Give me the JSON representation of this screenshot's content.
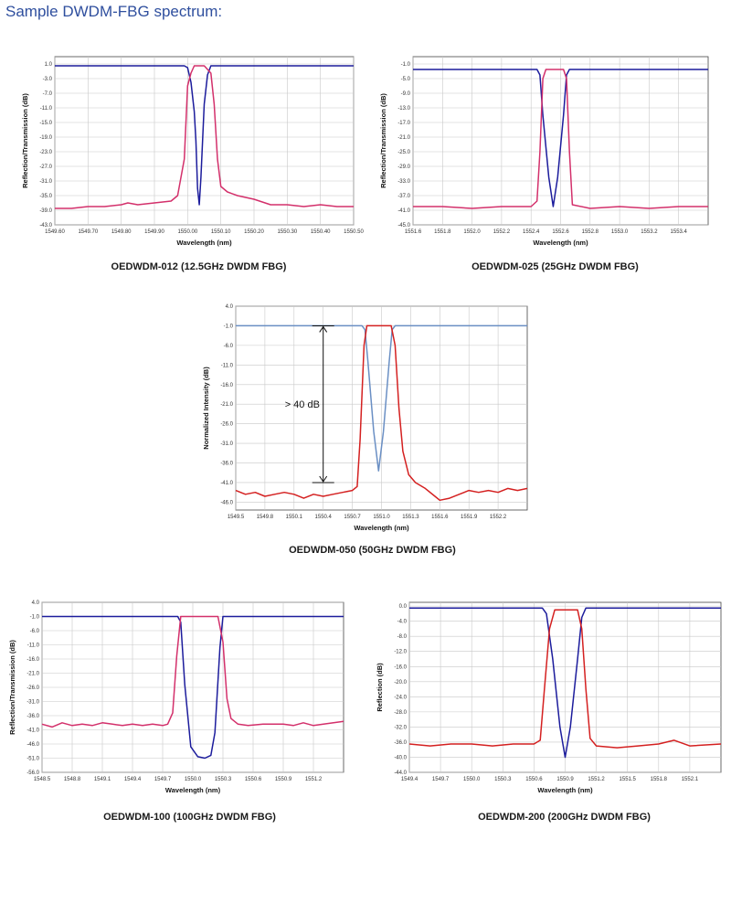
{
  "page": {
    "title": "Sample DWDM-FBG spectrum:"
  },
  "chart_data": [
    {
      "id": "c1",
      "type": "line",
      "caption": "OEDWDM-012 (12.5GHz DWDM FBG)",
      "xlabel": "Wavelength (nm)",
      "ylabel": "Reflection/Transmission (dB)",
      "xlim": [
        1549.6,
        1550.5
      ],
      "ylim": [
        -43.0,
        3.0
      ],
      "xticks": [
        "1549.60",
        "1549.70",
        "1549.80",
        "1549.90",
        "1550.00",
        "1550.10",
        "1550.20",
        "1550.30",
        "1550.40",
        "1550.50"
      ],
      "yticks": [
        "1.0",
        "-3.0",
        "-7.0",
        "-11.0",
        "-15.0",
        "-19.0",
        "-23.0",
        "-27.0",
        "-31.0",
        "-35.0",
        "-39.0",
        "-43.0"
      ],
      "grid": true,
      "series": [
        {
          "color": "#1c1c9c",
          "x": [
            1549.6,
            1549.99,
            1550.0,
            1550.01,
            1550.02,
            1550.025,
            1550.03,
            1550.035,
            1550.04,
            1550.05,
            1550.06,
            1550.07,
            1550.5
          ],
          "y": [
            0.5,
            0.5,
            0.0,
            -4.0,
            -12.0,
            -20.0,
            -33.0,
            -37.5,
            -30.0,
            -10.0,
            -2.0,
            0.5,
            0.5
          ]
        },
        {
          "color": "#d3306b",
          "x": [
            1549.6,
            1549.65,
            1549.7,
            1549.75,
            1549.8,
            1549.82,
            1549.85,
            1549.9,
            1549.95,
            1549.97,
            1549.99,
            1550.0,
            1550.01,
            1550.02,
            1550.05,
            1550.07,
            1550.08,
            1550.09,
            1550.1,
            1550.12,
            1550.15,
            1550.2,
            1550.25,
            1550.3,
            1550.35,
            1550.4,
            1550.45,
            1550.5
          ],
          "y": [
            -38.5,
            -38.5,
            -38.0,
            -38.0,
            -37.5,
            -37.0,
            -37.5,
            -37.0,
            -36.5,
            -35.0,
            -25.0,
            -5.0,
            -1.5,
            0.5,
            0.5,
            -1.5,
            -10.0,
            -25.0,
            -32.5,
            -34.0,
            -35.0,
            -36.0,
            -37.5,
            -37.5,
            -38.0,
            -37.5,
            -38.0,
            -38.0
          ]
        }
      ]
    },
    {
      "id": "c2",
      "type": "line",
      "caption": "OEDWDM-025 (25GHz DWDM FBG)",
      "xlabel": "Wavelength (nm)",
      "ylabel": "Reflection/Transmission (dB)",
      "xlim": [
        1551.6,
        1553.6
      ],
      "ylim": [
        -45.0,
        1.0
      ],
      "xticks": [
        "1551.6",
        "1551.8",
        "1552.0",
        "1552.2",
        "1552.4",
        "1552.6",
        "1552.8",
        "1553.0",
        "1553.2",
        "1553.4"
      ],
      "yticks": [
        "-1.0",
        "-5.0",
        "-9.0",
        "-13.0",
        "-17.0",
        "-21.0",
        "-25.0",
        "-29.0",
        "-33.0",
        "-37.0",
        "-41.0",
        "-45.0"
      ],
      "grid": true,
      "series": [
        {
          "color": "#1c1c9c",
          "x": [
            1551.6,
            1552.44,
            1552.46,
            1552.48,
            1552.52,
            1552.55,
            1552.58,
            1552.62,
            1552.64,
            1552.66,
            1553.6
          ],
          "y": [
            -2.5,
            -2.5,
            -4.0,
            -15.0,
            -32.0,
            -40.0,
            -32.0,
            -15.0,
            -4.0,
            -2.5,
            -2.5
          ]
        },
        {
          "color": "#d3306b",
          "x": [
            1551.6,
            1551.8,
            1552.0,
            1552.2,
            1552.4,
            1552.44,
            1552.46,
            1552.48,
            1552.5,
            1552.62,
            1552.64,
            1552.66,
            1552.68,
            1552.8,
            1553.0,
            1553.2,
            1553.4,
            1553.6
          ],
          "y": [
            -40.0,
            -40.0,
            -40.5,
            -40.0,
            -40.0,
            -38.5,
            -25.0,
            -5.0,
            -2.5,
            -2.5,
            -5.0,
            -25.0,
            -39.5,
            -40.5,
            -40.0,
            -40.5,
            -40.0,
            -40.0
          ]
        }
      ]
    },
    {
      "id": "c3",
      "type": "line",
      "caption": "OEDWDM-050 (50GHz DWDM FBG)",
      "xlabel": "Wavelength (nm)",
      "ylabel": "Normalized Intensity (dB)",
      "xlim": [
        1549.5,
        1552.5
      ],
      "ylim": [
        -48.0,
        4.0
      ],
      "xticks": [
        "1549.5",
        "1549.8",
        "1550.1",
        "1550.4",
        "1550.7",
        "1551.0",
        "1551.3",
        "1551.6",
        "1551.9",
        "1552.2"
      ],
      "yticks": [
        "4.0",
        "-1.0",
        "-6.0",
        "-11.0",
        "-16.0",
        "-21.0",
        "-26.0",
        "-31.0",
        "-36.0",
        "-41.0",
        "-46.0"
      ],
      "grid": true,
      "annotation": "> 40 dB",
      "annotation_x": 1550.4,
      "annotation_y": [
        -1.0,
        -41.0
      ],
      "series": [
        {
          "color": "#6a8fc4",
          "x": [
            1549.5,
            1550.8,
            1550.83,
            1550.86,
            1550.92,
            1550.97,
            1551.02,
            1551.08,
            1551.11,
            1551.14,
            1552.5
          ],
          "y": [
            -1.0,
            -1.0,
            -2.0,
            -10.0,
            -28.0,
            -38.0,
            -28.0,
            -10.0,
            -2.0,
            -1.0,
            -1.0
          ]
        },
        {
          "color": "#d42020",
          "x": [
            1549.5,
            1549.6,
            1549.7,
            1549.8,
            1549.9,
            1550.0,
            1550.1,
            1550.2,
            1550.3,
            1550.4,
            1550.5,
            1550.6,
            1550.7,
            1550.75,
            1550.78,
            1550.82,
            1550.85,
            1551.1,
            1551.14,
            1551.18,
            1551.22,
            1551.28,
            1551.35,
            1551.45,
            1551.55,
            1551.6,
            1551.7,
            1551.8,
            1551.9,
            1552.0,
            1552.1,
            1552.2,
            1552.3,
            1552.4,
            1552.5
          ],
          "y": [
            -43.0,
            -44.0,
            -43.5,
            -44.5,
            -44.0,
            -43.5,
            -44.0,
            -45.0,
            -44.0,
            -44.5,
            -44.0,
            -43.5,
            -43.0,
            -42.0,
            -30.0,
            -6.0,
            -1.0,
            -1.0,
            -6.0,
            -22.0,
            -33.0,
            -39.0,
            -41.0,
            -42.5,
            -44.5,
            -45.5,
            -45.0,
            -44.0,
            -43.0,
            -43.5,
            -43.0,
            -43.5,
            -42.5,
            -43.0,
            -42.5
          ]
        }
      ]
    },
    {
      "id": "c4",
      "type": "line",
      "caption": "OEDWDM-100 (100GHz DWDM FBG)",
      "xlabel": "Wavelength (nm)",
      "ylabel": "Reflection/Transmission (dB)",
      "xlim": [
        1548.5,
        1551.5
      ],
      "ylim": [
        -56.0,
        4.0
      ],
      "xticks": [
        "1548.5",
        "1548.8",
        "1549.1",
        "1549.4",
        "1549.7",
        "1550.0",
        "1550.3",
        "1550.6",
        "1550.9",
        "1551.2"
      ],
      "yticks": [
        "4.0",
        "-1.0",
        "-6.0",
        "-11.0",
        "-16.0",
        "-21.0",
        "-26.0",
        "-31.0",
        "-36.0",
        "-41.0",
        "-46.0",
        "-51.0",
        "-56.0"
      ],
      "grid": true,
      "series": [
        {
          "color": "#1c1c9c",
          "x": [
            1548.5,
            1549.85,
            1549.88,
            1549.92,
            1549.98,
            1550.05,
            1550.12,
            1550.18,
            1550.22,
            1550.27,
            1550.3,
            1551.5
          ],
          "y": [
            -1.0,
            -1.0,
            -3.0,
            -25.0,
            -47.0,
            -50.5,
            -51.0,
            -50.0,
            -42.0,
            -12.0,
            -1.0,
            -1.0
          ]
        },
        {
          "color": "#d3306b",
          "x": [
            1548.5,
            1548.6,
            1548.7,
            1548.8,
            1548.9,
            1549.0,
            1549.1,
            1549.2,
            1549.3,
            1549.4,
            1549.5,
            1549.6,
            1549.7,
            1549.75,
            1549.8,
            1549.84,
            1549.88,
            1550.25,
            1550.3,
            1550.34,
            1550.38,
            1550.45,
            1550.55,
            1550.7,
            1550.9,
            1551.0,
            1551.1,
            1551.2,
            1551.3,
            1551.5
          ],
          "y": [
            -39.0,
            -40.0,
            -38.5,
            -39.5,
            -39.0,
            -39.5,
            -38.5,
            -39.0,
            -39.5,
            -39.0,
            -39.5,
            -39.0,
            -39.5,
            -39.0,
            -35.0,
            -15.0,
            -1.0,
            -1.0,
            -10.0,
            -30.0,
            -37.0,
            -39.0,
            -39.5,
            -39.0,
            -39.0,
            -39.5,
            -38.5,
            -39.5,
            -39.0,
            -38.0
          ]
        }
      ]
    },
    {
      "id": "c5",
      "type": "line",
      "caption": "OEDWDM-200 (200GHz DWDM FBG)",
      "xlabel": "Wavelength (nm)",
      "ylabel": "Reflection (dB)",
      "xlim": [
        1549.4,
        1552.4
      ],
      "ylim": [
        -44.0,
        1.0
      ],
      "xticks": [
        "1549.4",
        "1549.7",
        "1550.0",
        "1550.3",
        "1550.6",
        "1550.9",
        "1551.2",
        "1551.5",
        "1551.8",
        "1552.1"
      ],
      "yticks": [
        "0.0",
        "-4.0",
        "-8.0",
        "-12.0",
        "-16.0",
        "-20.0",
        "-24.0",
        "-28.0",
        "-32.0",
        "-36.0",
        "-40.0",
        "-44.0"
      ],
      "grid": true,
      "series": [
        {
          "color": "#1c1c9c",
          "x": [
            1549.4,
            1550.68,
            1550.72,
            1550.78,
            1550.85,
            1550.9,
            1550.95,
            1551.02,
            1551.06,
            1551.1,
            1552.4
          ],
          "y": [
            -0.5,
            -0.5,
            -2.0,
            -14.0,
            -32.0,
            -40.0,
            -32.0,
            -14.0,
            -3.0,
            -0.5,
            -0.5
          ]
        },
        {
          "color": "#d42020",
          "x": [
            1549.4,
            1549.6,
            1549.8,
            1550.0,
            1550.2,
            1550.4,
            1550.6,
            1550.66,
            1550.7,
            1550.75,
            1550.8,
            1551.02,
            1551.06,
            1551.1,
            1551.14,
            1551.2,
            1551.4,
            1551.6,
            1551.8,
            1551.95,
            1552.1,
            1552.4
          ],
          "y": [
            -36.5,
            -37.0,
            -36.5,
            -36.5,
            -37.0,
            -36.5,
            -36.5,
            -35.5,
            -22.0,
            -6.0,
            -1.0,
            -1.0,
            -6.0,
            -22.0,
            -35.0,
            -37.0,
            -37.5,
            -37.0,
            -36.5,
            -35.5,
            -37.0,
            -36.5
          ]
        }
      ]
    }
  ]
}
